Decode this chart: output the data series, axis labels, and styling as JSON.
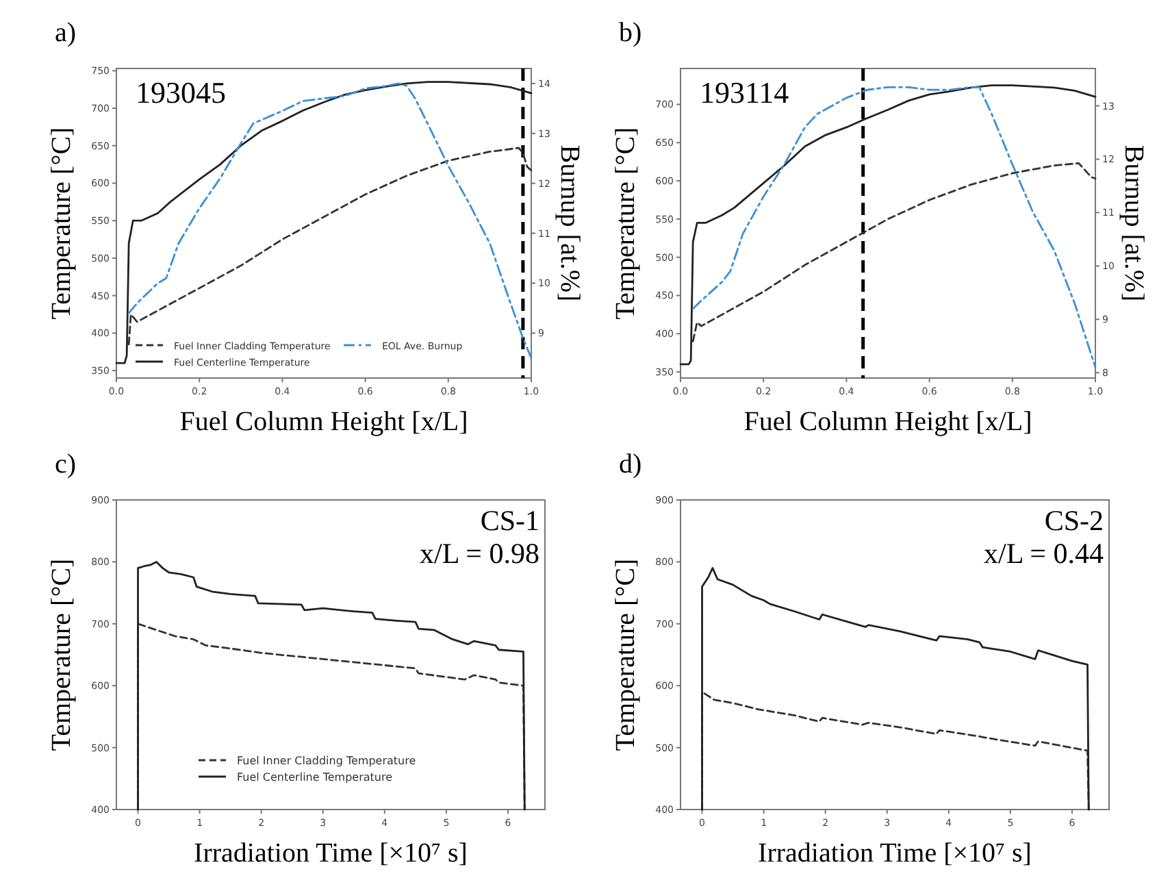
{
  "chart_data": [
    {
      "type": "line",
      "title": "a)",
      "xlabel": "Fuel Column Height [x/L]",
      "ylabel": "Temperature [°C]",
      "y2label": "Burnup [at.%]",
      "annotations": [
        "193045"
      ],
      "xlim": [
        0,
        1
      ],
      "xticks": [
        {
          "value": 0,
          "label": "0.0"
        },
        {
          "value": 0.2,
          "label": "0.2"
        },
        {
          "value": 0.4,
          "label": "0.4"
        },
        {
          "value": 0.6,
          "label": "0.6"
        },
        {
          "value": 0.8,
          "label": "0.8"
        },
        {
          "value": 1,
          "label": "1.0"
        }
      ],
      "ylim": [
        340,
        753
      ],
      "yticks": [
        350,
        400,
        450,
        500,
        550,
        600,
        650,
        700,
        750
      ],
      "y2lim": [
        8.1,
        14.3
      ],
      "y2ticks": [
        9,
        10,
        11,
        12,
        13,
        14
      ],
      "grid": false,
      "legend": "bottom",
      "marker": "none",
      "ref_lines": [
        {
          "axis": "x",
          "value": 0.98,
          "color": "#000000",
          "line_style": "dashed"
        }
      ],
      "series": [
        {
          "name": "Fuel Inner Cladding Temperature",
          "color": "#333333",
          "line_style": "dashed",
          "x": [
            0.03,
            0.035,
            0.05,
            0.1,
            0.2,
            0.3,
            0.4,
            0.5,
            0.6,
            0.7,
            0.8,
            0.9,
            0.97,
            0.98,
            0.99,
            1.0
          ],
          "values": [
            385,
            425,
            415,
            430,
            460,
            490,
            525,
            555,
            585,
            610,
            630,
            642,
            647,
            640,
            622,
            617
          ]
        },
        {
          "name": "Fuel Centerline Temperature",
          "color": "#222222",
          "line_style": "solid",
          "x": [
            0,
            0.02,
            0.025,
            0.03,
            0.04,
            0.06,
            0.1,
            0.13,
            0.2,
            0.25,
            0.3,
            0.35,
            0.4,
            0.45,
            0.5,
            0.55,
            0.6,
            0.65,
            0.7,
            0.75,
            0.8,
            0.9,
            0.95,
            1.0
          ],
          "values": [
            360,
            360,
            370,
            520,
            550,
            550,
            560,
            575,
            605,
            625,
            650,
            670,
            683,
            697,
            708,
            718,
            724,
            729,
            733,
            735,
            735,
            732,
            728,
            720
          ]
        },
        {
          "name": "EOL Ave. Burnup",
          "color": "#3a8fd4",
          "line_style": "dashdot",
          "axis": "y2",
          "x": [
            0.03,
            0.05,
            0.1,
            0.12,
            0.15,
            0.2,
            0.25,
            0.3,
            0.33,
            0.4,
            0.45,
            0.5,
            0.55,
            0.6,
            0.65,
            0.68,
            0.7,
            0.72,
            0.75,
            0.8,
            0.85,
            0.9,
            0.95,
            0.98,
            1.0
          ],
          "values": [
            9.4,
            9.6,
            10.0,
            10.1,
            10.8,
            11.5,
            12.1,
            12.8,
            13.2,
            13.45,
            13.65,
            13.7,
            13.75,
            13.9,
            13.95,
            14.0,
            13.95,
            13.7,
            13.2,
            12.35,
            11.6,
            10.8,
            9.6,
            8.9,
            8.5
          ]
        }
      ]
    },
    {
      "type": "line",
      "title": "b)",
      "xlabel": "Fuel Column Height [x/L]",
      "ylabel": "Temperature [°C]",
      "y2label": "Burnup [at.%]",
      "annotations": [
        "193114"
      ],
      "xlim": [
        0,
        1
      ],
      "xticks": [
        {
          "value": 0,
          "label": "0.0"
        },
        {
          "value": 0.2,
          "label": "0.2"
        },
        {
          "value": 0.4,
          "label": "0.4"
        },
        {
          "value": 0.6,
          "label": "0.6"
        },
        {
          "value": 0.8,
          "label": "0.8"
        },
        {
          "value": 1,
          "label": "1.0"
        }
      ],
      "ylim": [
        342,
        747
      ],
      "yticks": [
        350,
        400,
        450,
        500,
        550,
        600,
        650,
        700
      ],
      "y2lim": [
        7.9,
        13.7
      ],
      "y2ticks": [
        8,
        9,
        10,
        11,
        12,
        13
      ],
      "grid": false,
      "marker": "none",
      "ref_lines": [
        {
          "axis": "x",
          "value": 0.44,
          "color": "#000000",
          "line_style": "dashed"
        }
      ],
      "series": [
        {
          "color": "#333333",
          "line_style": "dashed",
          "x": [
            0.03,
            0.04,
            0.05,
            0.1,
            0.2,
            0.3,
            0.4,
            0.5,
            0.6,
            0.7,
            0.8,
            0.9,
            0.96,
            0.99,
            1.0
          ],
          "values": [
            390,
            415,
            410,
            425,
            455,
            490,
            520,
            550,
            575,
            595,
            610,
            620,
            623,
            605,
            603
          ]
        },
        {
          "color": "#222222",
          "line_style": "solid",
          "x": [
            0,
            0.02,
            0.025,
            0.03,
            0.04,
            0.06,
            0.1,
            0.13,
            0.2,
            0.25,
            0.3,
            0.35,
            0.4,
            0.45,
            0.5,
            0.55,
            0.6,
            0.65,
            0.7,
            0.75,
            0.8,
            0.9,
            0.95,
            1.0
          ],
          "values": [
            360,
            360,
            365,
            520,
            545,
            545,
            555,
            565,
            597,
            620,
            645,
            660,
            670,
            682,
            693,
            705,
            713,
            717,
            722,
            725,
            725,
            722,
            718,
            710
          ]
        },
        {
          "color": "#3a8fd4",
          "line_style": "dashdot",
          "axis": "y2",
          "x": [
            0.03,
            0.05,
            0.1,
            0.12,
            0.15,
            0.2,
            0.25,
            0.3,
            0.33,
            0.4,
            0.45,
            0.5,
            0.55,
            0.6,
            0.65,
            0.7,
            0.72,
            0.75,
            0.8,
            0.85,
            0.9,
            0.95,
            1.0
          ],
          "values": [
            9.2,
            9.35,
            9.7,
            9.9,
            10.6,
            11.3,
            11.9,
            12.6,
            12.85,
            13.15,
            13.3,
            13.35,
            13.35,
            13.3,
            13.3,
            13.35,
            13.35,
            12.85,
            11.9,
            11.0,
            10.3,
            9.3,
            8.1
          ]
        }
      ]
    },
    {
      "type": "line",
      "title": "c)",
      "xlabel": "Irradiation Time [×10⁷ s]",
      "ylabel": "Temperature [°C]",
      "annotations": [
        "CS-1",
        "x/L = 0.98"
      ],
      "xlim": [
        -0.35,
        6.6
      ],
      "xticks": [
        0,
        1,
        2,
        3,
        4,
        5,
        6
      ],
      "ylim": [
        400,
        900
      ],
      "yticks": [
        400,
        500,
        600,
        700,
        800,
        900
      ],
      "grid": false,
      "legend": "bottom",
      "marker": "none",
      "series": [
        {
          "name": "Fuel Inner Cladding Temperature",
          "color": "#333333",
          "line_style": "dashed",
          "x": [
            0,
            0,
            0.3,
            0.6,
            0.9,
            1.1,
            1.5,
            2,
            2.5,
            3,
            3.5,
            4,
            4.5,
            4.55,
            5,
            5.3,
            5.45,
            5.8,
            5.85,
            6.25,
            6.27
          ],
          "values": [
            400,
            700,
            690,
            680,
            675,
            665,
            660,
            653,
            648,
            643,
            638,
            633,
            628,
            620,
            614,
            610,
            617,
            610,
            605,
            600,
            400
          ]
        },
        {
          "name": "Fuel Centerline Temperature",
          "color": "#222222",
          "line_style": "solid",
          "x": [
            0,
            0,
            0.1,
            0.2,
            0.3,
            0.4,
            0.5,
            0.7,
            0.9,
            0.95,
            1.2,
            1.5,
            1.9,
            1.95,
            2.3,
            2.65,
            2.7,
            3,
            3.5,
            3.8,
            3.85,
            4.2,
            4.5,
            4.55,
            4.8,
            5.1,
            5.35,
            5.45,
            5.8,
            5.85,
            6.25,
            6.27
          ],
          "values": [
            400,
            790,
            793,
            795,
            800,
            790,
            783,
            780,
            775,
            760,
            752,
            748,
            745,
            733,
            732,
            731,
            722,
            725,
            720,
            718,
            708,
            705,
            703,
            692,
            690,
            675,
            667,
            672,
            665,
            658,
            655,
            400
          ]
        }
      ]
    },
    {
      "type": "line",
      "title": "d)",
      "xlabel": "Irradiation Time [×10⁷ s]",
      "ylabel": "Temperature [°C]",
      "annotations": [
        "CS-2",
        "x/L = 0.44"
      ],
      "xlim": [
        -0.35,
        6.6
      ],
      "xticks": [
        0,
        1,
        2,
        3,
        4,
        5,
        6
      ],
      "ylim": [
        400,
        900
      ],
      "yticks": [
        400,
        500,
        600,
        700,
        800,
        900
      ],
      "grid": false,
      "marker": "none",
      "series": [
        {
          "color": "#333333",
          "line_style": "dashed",
          "x": [
            0,
            0,
            0.2,
            0.5,
            0.9,
            1.5,
            1.9,
            1.95,
            2.6,
            2.7,
            3.2,
            3.8,
            3.85,
            4.5,
            4.6,
            5.4,
            5.45,
            6.25,
            6.27
          ],
          "values": [
            400,
            590,
            577,
            572,
            562,
            552,
            542,
            548,
            537,
            540,
            533,
            522,
            528,
            518,
            516,
            503,
            510,
            495,
            400
          ]
        },
        {
          "color": "#222222",
          "line_style": "solid",
          "x": [
            0,
            0,
            0.1,
            0.17,
            0.25,
            0.5,
            0.8,
            1.0,
            1.1,
            1.5,
            1.9,
            1.95,
            2.3,
            2.65,
            2.7,
            3.2,
            3.8,
            3.85,
            4.3,
            4.5,
            4.55,
            5.0,
            5.4,
            5.45,
            6.0,
            6.25,
            6.27
          ],
          "values": [
            400,
            760,
            775,
            790,
            772,
            763,
            745,
            738,
            732,
            720,
            707,
            715,
            705,
            695,
            698,
            688,
            673,
            680,
            675,
            670,
            662,
            655,
            643,
            657,
            640,
            634,
            400
          ]
        }
      ]
    }
  ]
}
